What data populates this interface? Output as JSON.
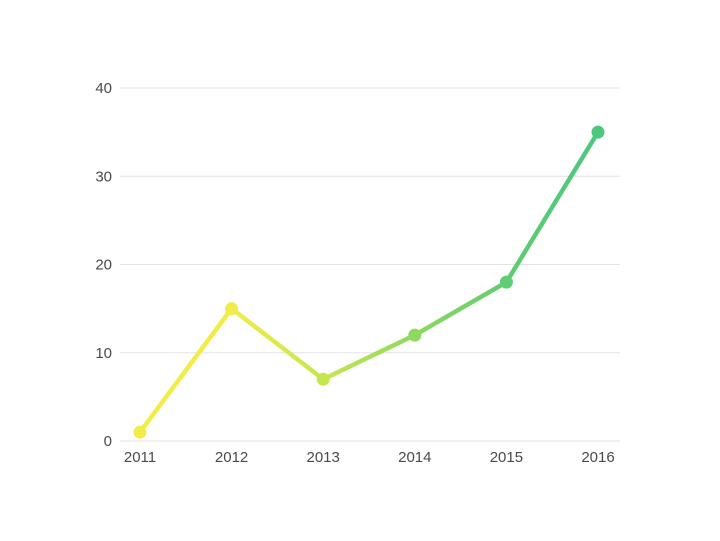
{
  "page": {
    "background_color": "#ffffff"
  },
  "chart_data": {
    "type": "line",
    "title": "",
    "xlabel": "",
    "ylabel": "",
    "categories": [
      "2011",
      "2012",
      "2013",
      "2014",
      "2015",
      "2016"
    ],
    "values": [
      1,
      15,
      7,
      12,
      18,
      35
    ],
    "ylim": [
      0,
      40
    ],
    "yticks": [
      0,
      10,
      20,
      30,
      40
    ],
    "grid": "horizontal-only",
    "legend": "none",
    "marker": "circle",
    "line_gradient_from": "#f3ec45",
    "line_gradient_to": "#4dc77f",
    "point_colors": [
      "#f3ec45",
      "#f1ec4a",
      "#c6e64d",
      "#8ed95e",
      "#5fcd72",
      "#4dc77f"
    ],
    "gridline_color": "#e3e3e3",
    "tick_label_color": "#4a4a4b"
  }
}
